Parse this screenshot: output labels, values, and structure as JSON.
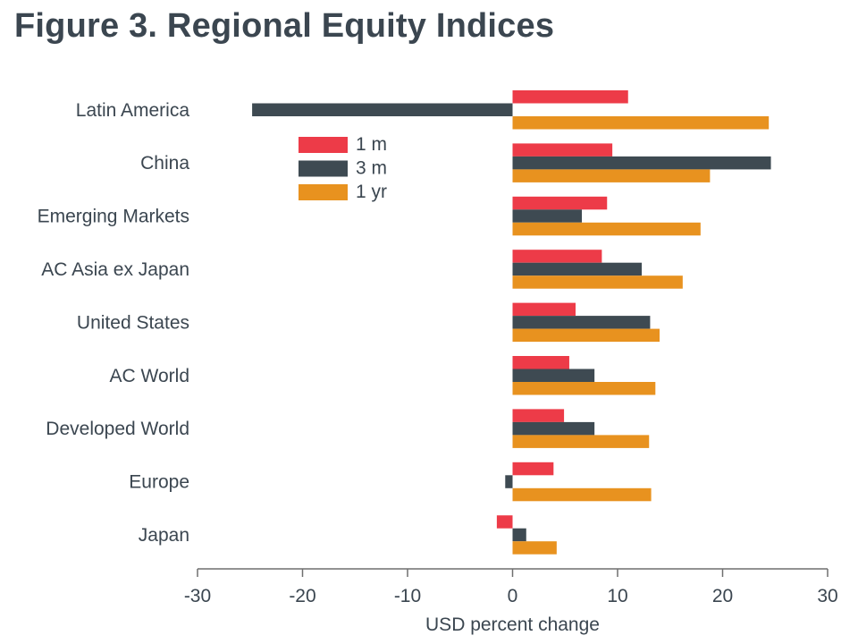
{
  "title": "Figure 3. Regional Equity Indices",
  "chart_data": {
    "type": "bar",
    "orientation": "horizontal",
    "categories": [
      "Latin America",
      "China",
      "Emerging Markets",
      "AC Asia ex Japan",
      "United States",
      "AC World",
      "Developed World",
      "Europe",
      "Japan"
    ],
    "series": [
      {
        "name": "1 m",
        "color": "#ed3b48",
        "values": [
          11.0,
          9.5,
          9.0,
          8.5,
          6.0,
          5.4,
          4.9,
          3.9,
          -1.5
        ]
      },
      {
        "name": "3 m",
        "color": "#3e4a52",
        "values": [
          -24.8,
          24.6,
          6.6,
          12.3,
          13.1,
          7.8,
          7.8,
          -0.7,
          1.3
        ]
      },
      {
        "name": "1 yr",
        "color": "#e8921f",
        "values": [
          24.4,
          18.8,
          17.9,
          16.2,
          14.0,
          13.6,
          13.0,
          13.2,
          4.2
        ]
      }
    ],
    "xlabel": "USD percent change",
    "xlim": [
      -30,
      30
    ],
    "xticks": [
      -30,
      -20,
      -10,
      0,
      10,
      20,
      30
    ],
    "grid": false,
    "legend_position": "upper-left, inside plot"
  }
}
